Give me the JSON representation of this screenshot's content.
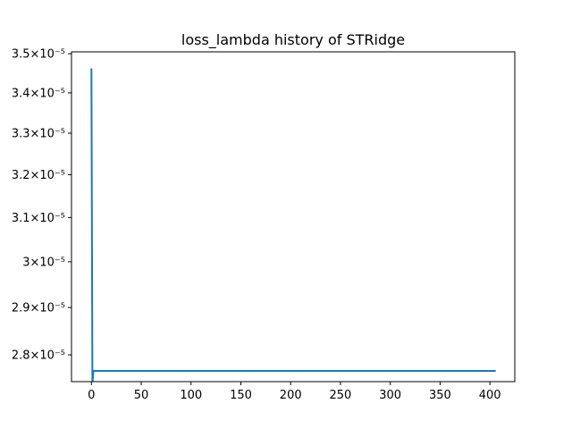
{
  "chart_data": {
    "type": "line",
    "title": "loss_lambda history of STRidge",
    "xlabel": "",
    "ylabel": "",
    "y_scale": "log",
    "grid": false,
    "xlim": [
      -20,
      425
    ],
    "ylim": [
      2.745e-05,
      3.505e-05
    ],
    "x_ticks": [
      0,
      50,
      100,
      150,
      200,
      250,
      300,
      350,
      400
    ],
    "y_ticks": [
      {
        "value": 2.8e-05,
        "label": "2.8×10⁻⁵"
      },
      {
        "value": 2.9e-05,
        "label": "2.9×10⁻⁵"
      },
      {
        "value": 3e-05,
        "label": "3×10⁻⁵"
      },
      {
        "value": 3.1e-05,
        "label": "3.1×10⁻⁵"
      },
      {
        "value": 3.2e-05,
        "label": "3.2×10⁻⁵"
      },
      {
        "value": 3.3e-05,
        "label": "3.3×10⁻⁵"
      },
      {
        "value": 3.4e-05,
        "label": "3.4×10⁻⁵"
      },
      {
        "value": 3.5e-05,
        "label": "3.5×10⁻⁵"
      }
    ],
    "series": [
      {
        "color": "#1f77b4",
        "x": [
          0,
          1,
          2,
          3,
          405
        ],
        "y": [
          3.46e-05,
          2.74e-05,
          2.767e-05,
          2.767e-05,
          2.767e-05
        ]
      }
    ]
  }
}
